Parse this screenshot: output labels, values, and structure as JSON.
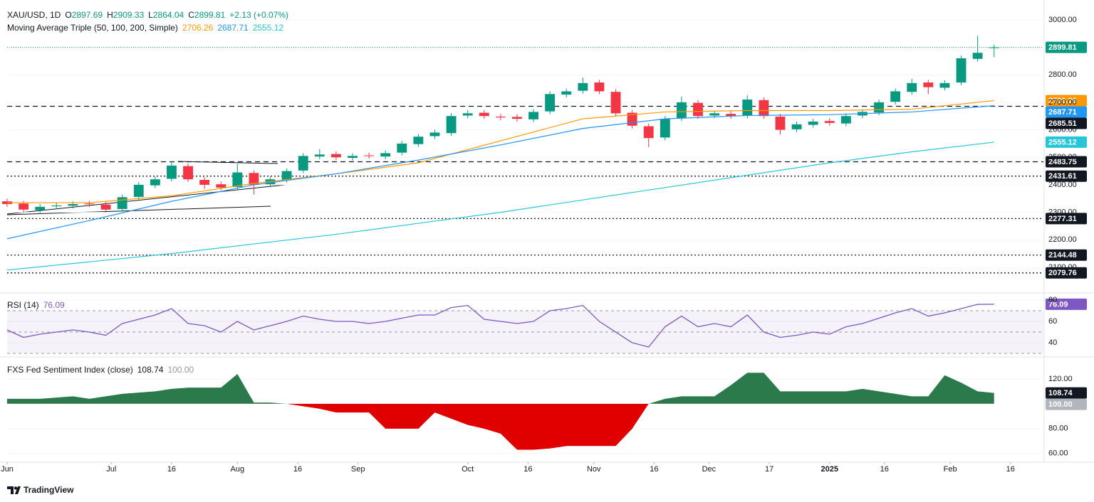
{
  "chart_data": [
    {
      "type": "candlestick",
      "symbol": "XAU/USD, 1D",
      "ohlc": [
        {
          "label": "O",
          "value": 2897.69
        },
        {
          "label": "H",
          "value": 2909.33
        },
        {
          "label": "L",
          "value": 2864.04
        },
        {
          "label": "C",
          "value": 2899.81
        }
      ],
      "change": "+2.13 (+0.07%)",
      "indicator": "Moving Average Triple (50, 100, 200, Simple)",
      "up_color": "#089981",
      "down_color": "#f23645",
      "x": [
        0,
        3,
        6,
        9,
        12,
        15,
        18,
        21,
        24,
        27,
        30,
        33,
        36,
        39,
        42,
        45,
        48,
        51,
        54,
        57,
        60,
        63,
        66,
        69,
        72,
        75,
        78,
        81,
        84,
        87,
        90,
        93,
        96,
        99,
        102,
        105,
        108,
        111,
        114,
        117,
        120,
        123,
        126,
        129,
        132,
        135,
        138,
        141,
        144,
        147,
        150,
        153,
        156,
        159,
        162,
        165,
        168,
        171,
        174,
        177,
        180
      ],
      "open": [
        2340,
        2332,
        2308,
        2322,
        2324,
        2332,
        2328,
        2312,
        2356,
        2398,
        2422,
        2468,
        2418,
        2402,
        2392,
        2443,
        2402,
        2418,
        2452,
        2503,
        2512,
        2498,
        2507,
        2503,
        2517,
        2548,
        2577,
        2588,
        2652,
        2662,
        2648,
        2647,
        2638,
        2667,
        2728,
        2742,
        2772,
        2738,
        2662,
        2613,
        2572,
        2642,
        2698,
        2652,
        2658,
        2652,
        2708,
        2648,
        2602,
        2618,
        2632,
        2623,
        2652,
        2663,
        2702,
        2738,
        2772,
        2753,
        2772,
        2858,
        2897.69
      ],
      "high": [
        2350,
        2342,
        2330,
        2335,
        2340,
        2342,
        2338,
        2365,
        2410,
        2430,
        2485,
        2478,
        2428,
        2412,
        2477,
        2453,
        2430,
        2460,
        2515,
        2530,
        2522,
        2515,
        2517,
        2525,
        2560,
        2585,
        2600,
        2660,
        2672,
        2672,
        2658,
        2657,
        2675,
        2740,
        2750,
        2790,
        2782,
        2748,
        2672,
        2623,
        2650,
        2721,
        2708,
        2670,
        2668,
        2726,
        2718,
        2658,
        2630,
        2640,
        2642,
        2660,
        2675,
        2710,
        2750,
        2785,
        2782,
        2780,
        2870,
        2942,
        2909.33
      ],
      "low": [
        2320,
        2300,
        2298,
        2312,
        2314,
        2320,
        2300,
        2302,
        2346,
        2388,
        2412,
        2410,
        2385,
        2380,
        2382,
        2365,
        2392,
        2408,
        2442,
        2493,
        2490,
        2488,
        2495,
        2493,
        2507,
        2538,
        2567,
        2578,
        2642,
        2640,
        2635,
        2630,
        2628,
        2657,
        2718,
        2732,
        2730,
        2650,
        2605,
        2537,
        2562,
        2632,
        2640,
        2642,
        2640,
        2642,
        2640,
        2583,
        2592,
        2608,
        2615,
        2613,
        2642,
        2653,
        2692,
        2728,
        2730,
        2743,
        2762,
        2848,
        2864.04
      ],
      "close": [
        2330,
        2310,
        2320,
        2325,
        2330,
        2330,
        2310,
        2355,
        2400,
        2420,
        2470,
        2420,
        2400,
        2390,
        2445,
        2400,
        2420,
        2450,
        2505,
        2510,
        2500,
        2505,
        2505,
        2515,
        2550,
        2575,
        2590,
        2650,
        2660,
        2650,
        2645,
        2640,
        2665,
        2730,
        2740,
        2770,
        2740,
        2660,
        2615,
        2570,
        2640,
        2700,
        2650,
        2660,
        2650,
        2710,
        2650,
        2600,
        2620,
        2630,
        2625,
        2650,
        2665,
        2700,
        2740,
        2770,
        2755,
        2770,
        2860,
        2880,
        2899.81
      ],
      "ma_x": [
        0,
        15,
        30,
        45,
        60,
        75,
        90,
        105,
        120,
        135,
        150,
        165,
        180
      ],
      "ma": [
        {
          "color": "#ff9800",
          "values": [
            2335,
            2335,
            2360,
            2405,
            2440,
            2480,
            2560,
            2640,
            2665,
            2670,
            2670,
            2675,
            2706.26
          ]
        },
        {
          "color": "#2196f3",
          "values": [
            2204,
            2270,
            2340,
            2400,
            2440,
            2490,
            2545,
            2605,
            2640,
            2652,
            2655,
            2665,
            2687.71
          ]
        },
        {
          "color": "#26c6da",
          "values": [
            2090,
            2120,
            2150,
            2185,
            2220,
            2260,
            2300,
            2345,
            2390,
            2435,
            2480,
            2520,
            2555.12
          ]
        }
      ],
      "levels": [
        {
          "value": 2685.51,
          "style": "dashed"
        },
        {
          "value": 2483.75,
          "style": "dashed"
        },
        {
          "value": 2431.61,
          "style": "dotted"
        },
        {
          "value": 2277.31,
          "style": "dotted"
        },
        {
          "value": 2144.48,
          "style": "dotted"
        },
        {
          "value": 2079.76,
          "style": "dotted"
        }
      ],
      "xlim": [
        0,
        189
      ],
      "ylim": [
        2012,
        3072
      ],
      "yticks": [
        {
          "value": 2100,
          "label": "2100.00"
        },
        {
          "value": 2200,
          "label": "2200.00"
        },
        {
          "value": 2300,
          "label": "2300.00"
        },
        {
          "value": 2400,
          "label": "2400.00"
        },
        {
          "value": 2500,
          "label": "2500.00"
        },
        {
          "value": 2600,
          "label": "2600.00"
        },
        {
          "value": 2700,
          "label": "2700.00"
        },
        {
          "value": 2800,
          "label": "2800.00"
        },
        {
          "value": 3000,
          "label": "3000.00"
        }
      ]
    },
    {
      "type": "line",
      "title": "RSI (14)",
      "color": "#7e57c2",
      "x": [
        0,
        3,
        6,
        9,
        12,
        15,
        18,
        21,
        24,
        27,
        30,
        33,
        36,
        39,
        42,
        45,
        48,
        51,
        54,
        57,
        60,
        63,
        66,
        69,
        72,
        75,
        78,
        81,
        84,
        87,
        90,
        93,
        96,
        99,
        102,
        105,
        108,
        111,
        114,
        117,
        120,
        123,
        126,
        129,
        132,
        135,
        138,
        141,
        144,
        147,
        150,
        153,
        156,
        159,
        162,
        165,
        168,
        171,
        174,
        177,
        180
      ],
      "values": [
        52,
        45,
        48,
        50,
        52,
        50,
        47,
        58,
        62,
        66,
        72,
        58,
        56,
        50,
        60,
        52,
        56,
        60,
        65,
        62,
        60,
        60,
        58,
        60,
        63,
        66,
        66,
        73,
        75,
        62,
        60,
        58,
        60,
        70,
        72,
        75,
        60,
        50,
        40,
        36,
        55,
        65,
        55,
        58,
        55,
        66,
        50,
        45,
        47,
        50,
        48,
        55,
        58,
        63,
        68,
        72,
        65,
        68,
        72,
        76,
        76.09
      ],
      "bands": [
        30,
        50,
        70
      ],
      "xlim": [
        0,
        189
      ],
      "ylim": [
        28,
        84.7
      ],
      "yticks": [
        40,
        60,
        80
      ]
    },
    {
      "type": "area",
      "title": "FXS Fed Sentiment Index (close)",
      "up_color": "#2b7a4b",
      "down_color": "#e00000",
      "x": [
        0,
        3,
        6,
        9,
        12,
        15,
        18,
        21,
        24,
        27,
        30,
        33,
        36,
        39,
        42,
        45,
        48,
        51,
        54,
        57,
        60,
        63,
        66,
        69,
        72,
        75,
        78,
        81,
        84,
        87,
        90,
        93,
        96,
        99,
        102,
        105,
        108,
        111,
        114,
        117,
        120,
        123,
        126,
        129,
        132,
        135,
        138,
        141,
        144,
        147,
        150,
        153,
        156,
        159,
        162,
        165,
        168,
        171,
        174,
        177,
        180
      ],
      "values": [
        104,
        104,
        104,
        105,
        106,
        104,
        106,
        108,
        109,
        110,
        112,
        113,
        113,
        113,
        124,
        101,
        101,
        100,
        98,
        96,
        93,
        93,
        93,
        80,
        80,
        80,
        93,
        88,
        83,
        80,
        76,
        63,
        63,
        64,
        66,
        66,
        66,
        66,
        80,
        100,
        104,
        106,
        106,
        106,
        115,
        125,
        125,
        110,
        110,
        110,
        110,
        110,
        112,
        110,
        108,
        106,
        106,
        123,
        117,
        110,
        108.74
      ],
      "baseline": {
        "value": 100,
        "label": "100.00"
      },
      "xlim": [
        0,
        189
      ],
      "ylim": [
        53,
        136
      ],
      "yticks": [
        {
          "value": 60,
          "label": "60.00"
        },
        {
          "value": 80,
          "label": "80.00"
        },
        {
          "value": 120,
          "label": "120.00"
        }
      ],
      "xticks": [
        {
          "value": 0,
          "label": "Jun"
        },
        {
          "value": 19,
          "label": "Jul"
        },
        {
          "value": 30,
          "label": "16"
        },
        {
          "value": 42,
          "label": "Aug"
        },
        {
          "value": 53,
          "label": "16"
        },
        {
          "value": 64,
          "label": "Sep"
        },
        {
          "value": 84,
          "label": "Oct"
        },
        {
          "value": 95,
          "label": "16"
        },
        {
          "value": 107,
          "label": "Nov"
        },
        {
          "value": 118,
          "label": "16"
        },
        {
          "value": 128,
          "label": "Dec"
        },
        {
          "value": 139,
          "label": "17"
        },
        {
          "value": 150,
          "label": "2025"
        },
        {
          "value": 160,
          "label": "16"
        },
        {
          "value": 172,
          "label": "Feb"
        },
        {
          "value": 183,
          "label": "16"
        }
      ]
    }
  ],
  "footer": "TradingView"
}
